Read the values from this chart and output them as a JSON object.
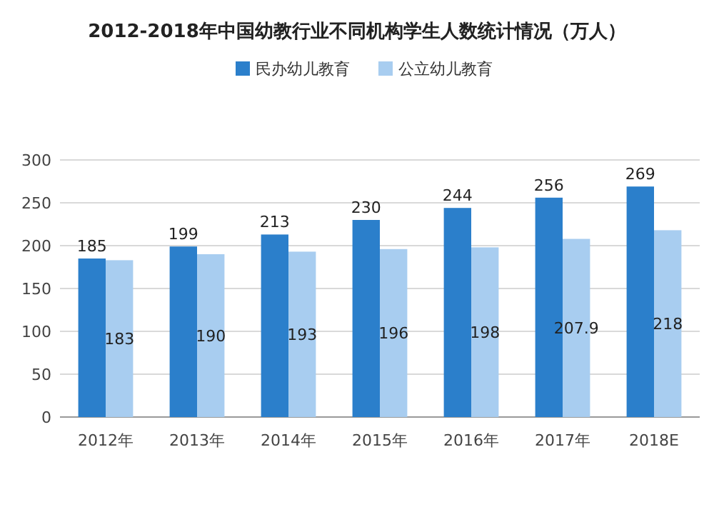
{
  "chart_data": {
    "type": "bar",
    "title": "2012-2018年中国幼教行业不同机构学生人数统计情况（万人）",
    "categories": [
      "2012年",
      "2013年",
      "2014年",
      "2015年",
      "2016年",
      "2017年",
      "2018E"
    ],
    "series": [
      {
        "name": "民办幼儿教育",
        "color": "#2b7fcb",
        "values": [
          185,
          199,
          213,
          230,
          244,
          256,
          269
        ]
      },
      {
        "name": "公立幼儿教育",
        "color": "#a8cdf0",
        "values": [
          183,
          190,
          193,
          196,
          198,
          207.9,
          218
        ]
      }
    ],
    "ylim": [
      0,
      300
    ],
    "yticks": [
      0,
      50,
      100,
      150,
      200,
      250,
      300
    ],
    "grid": "y",
    "legend": "top left",
    "data_labels": true
  }
}
